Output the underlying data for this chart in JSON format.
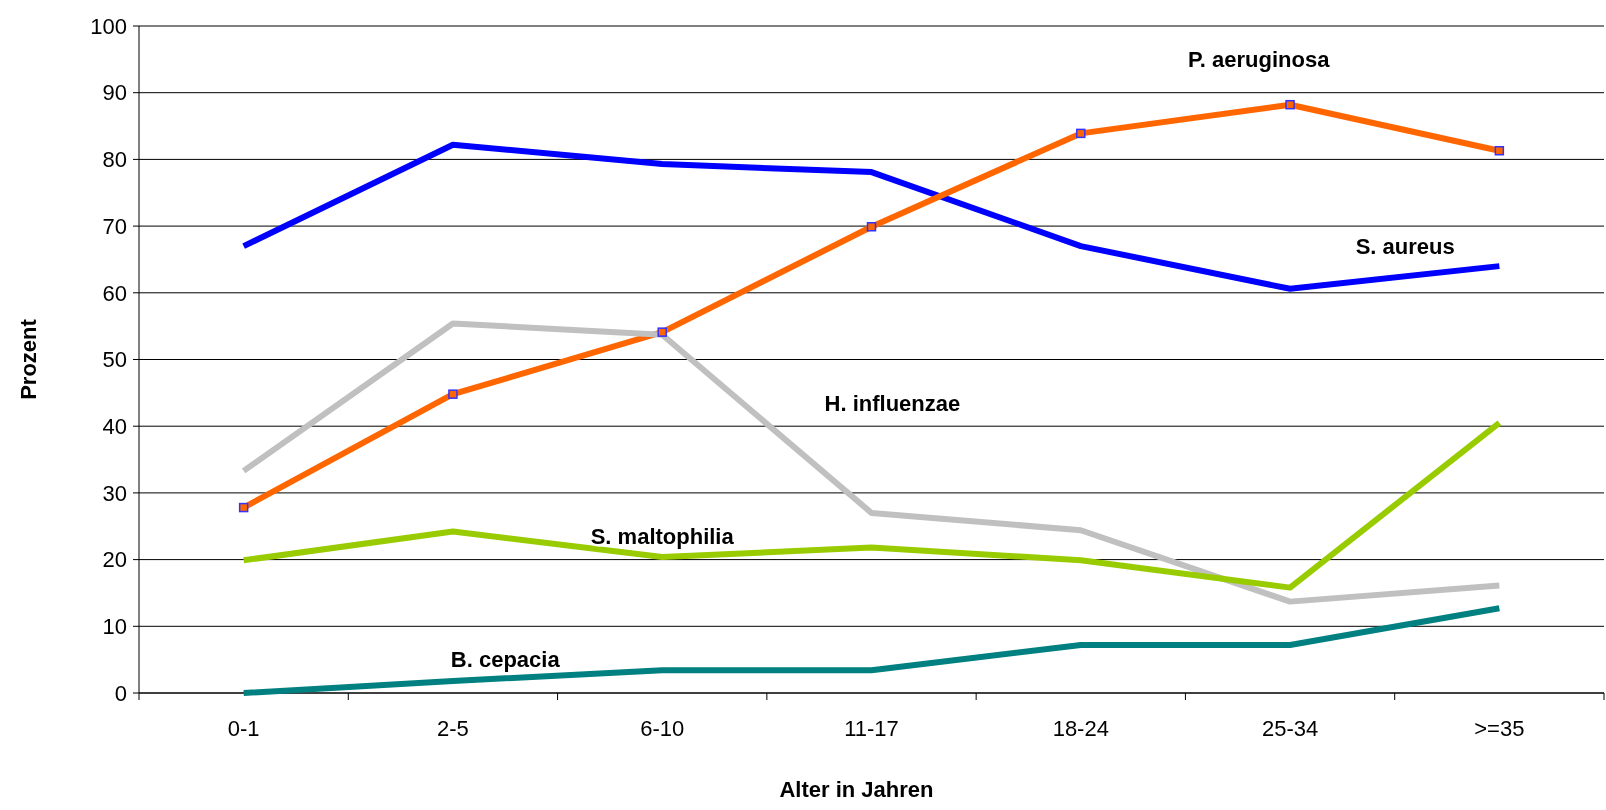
{
  "chart_data": {
    "type": "line",
    "xlabel": "Alter in Jahren",
    "ylabel": "Prozent",
    "categories": [
      "0-1",
      "2-5",
      "6-10",
      "11-17",
      "18-24",
      "25-34",
      ">=35"
    ],
    "ylim": [
      0,
      100
    ],
    "yticks": [
      0,
      10,
      20,
      30,
      40,
      50,
      60,
      70,
      80,
      90,
      100
    ],
    "grid": "y",
    "series": [
      {
        "name": "S. aureus",
        "color": "#0000ff",
        "values": [
          67.0,
          82.2,
          79.3,
          78.1,
          67.0,
          60.6,
          64.0
        ]
      },
      {
        "name": "P. aeruginosa",
        "color": "#ff6600",
        "marker": "square",
        "values": [
          27.8,
          44.8,
          54.1,
          69.9,
          83.9,
          88.2,
          81.3
        ]
      },
      {
        "name": "H. influenzae",
        "color": "#c0c0c0",
        "values": [
          33.3,
          55.4,
          53.7,
          27.0,
          24.4,
          13.7,
          16.1
        ]
      },
      {
        "name": "S. maltophilia",
        "color": "#99cc00",
        "values": [
          19.9,
          24.2,
          20.4,
          21.8,
          19.9,
          15.8,
          40.5
        ]
      },
      {
        "name": "B. cepacia",
        "color": "#008080",
        "values": [
          0,
          1.8,
          3.4,
          3.4,
          7.2,
          7.2,
          12.7
        ]
      }
    ]
  }
}
